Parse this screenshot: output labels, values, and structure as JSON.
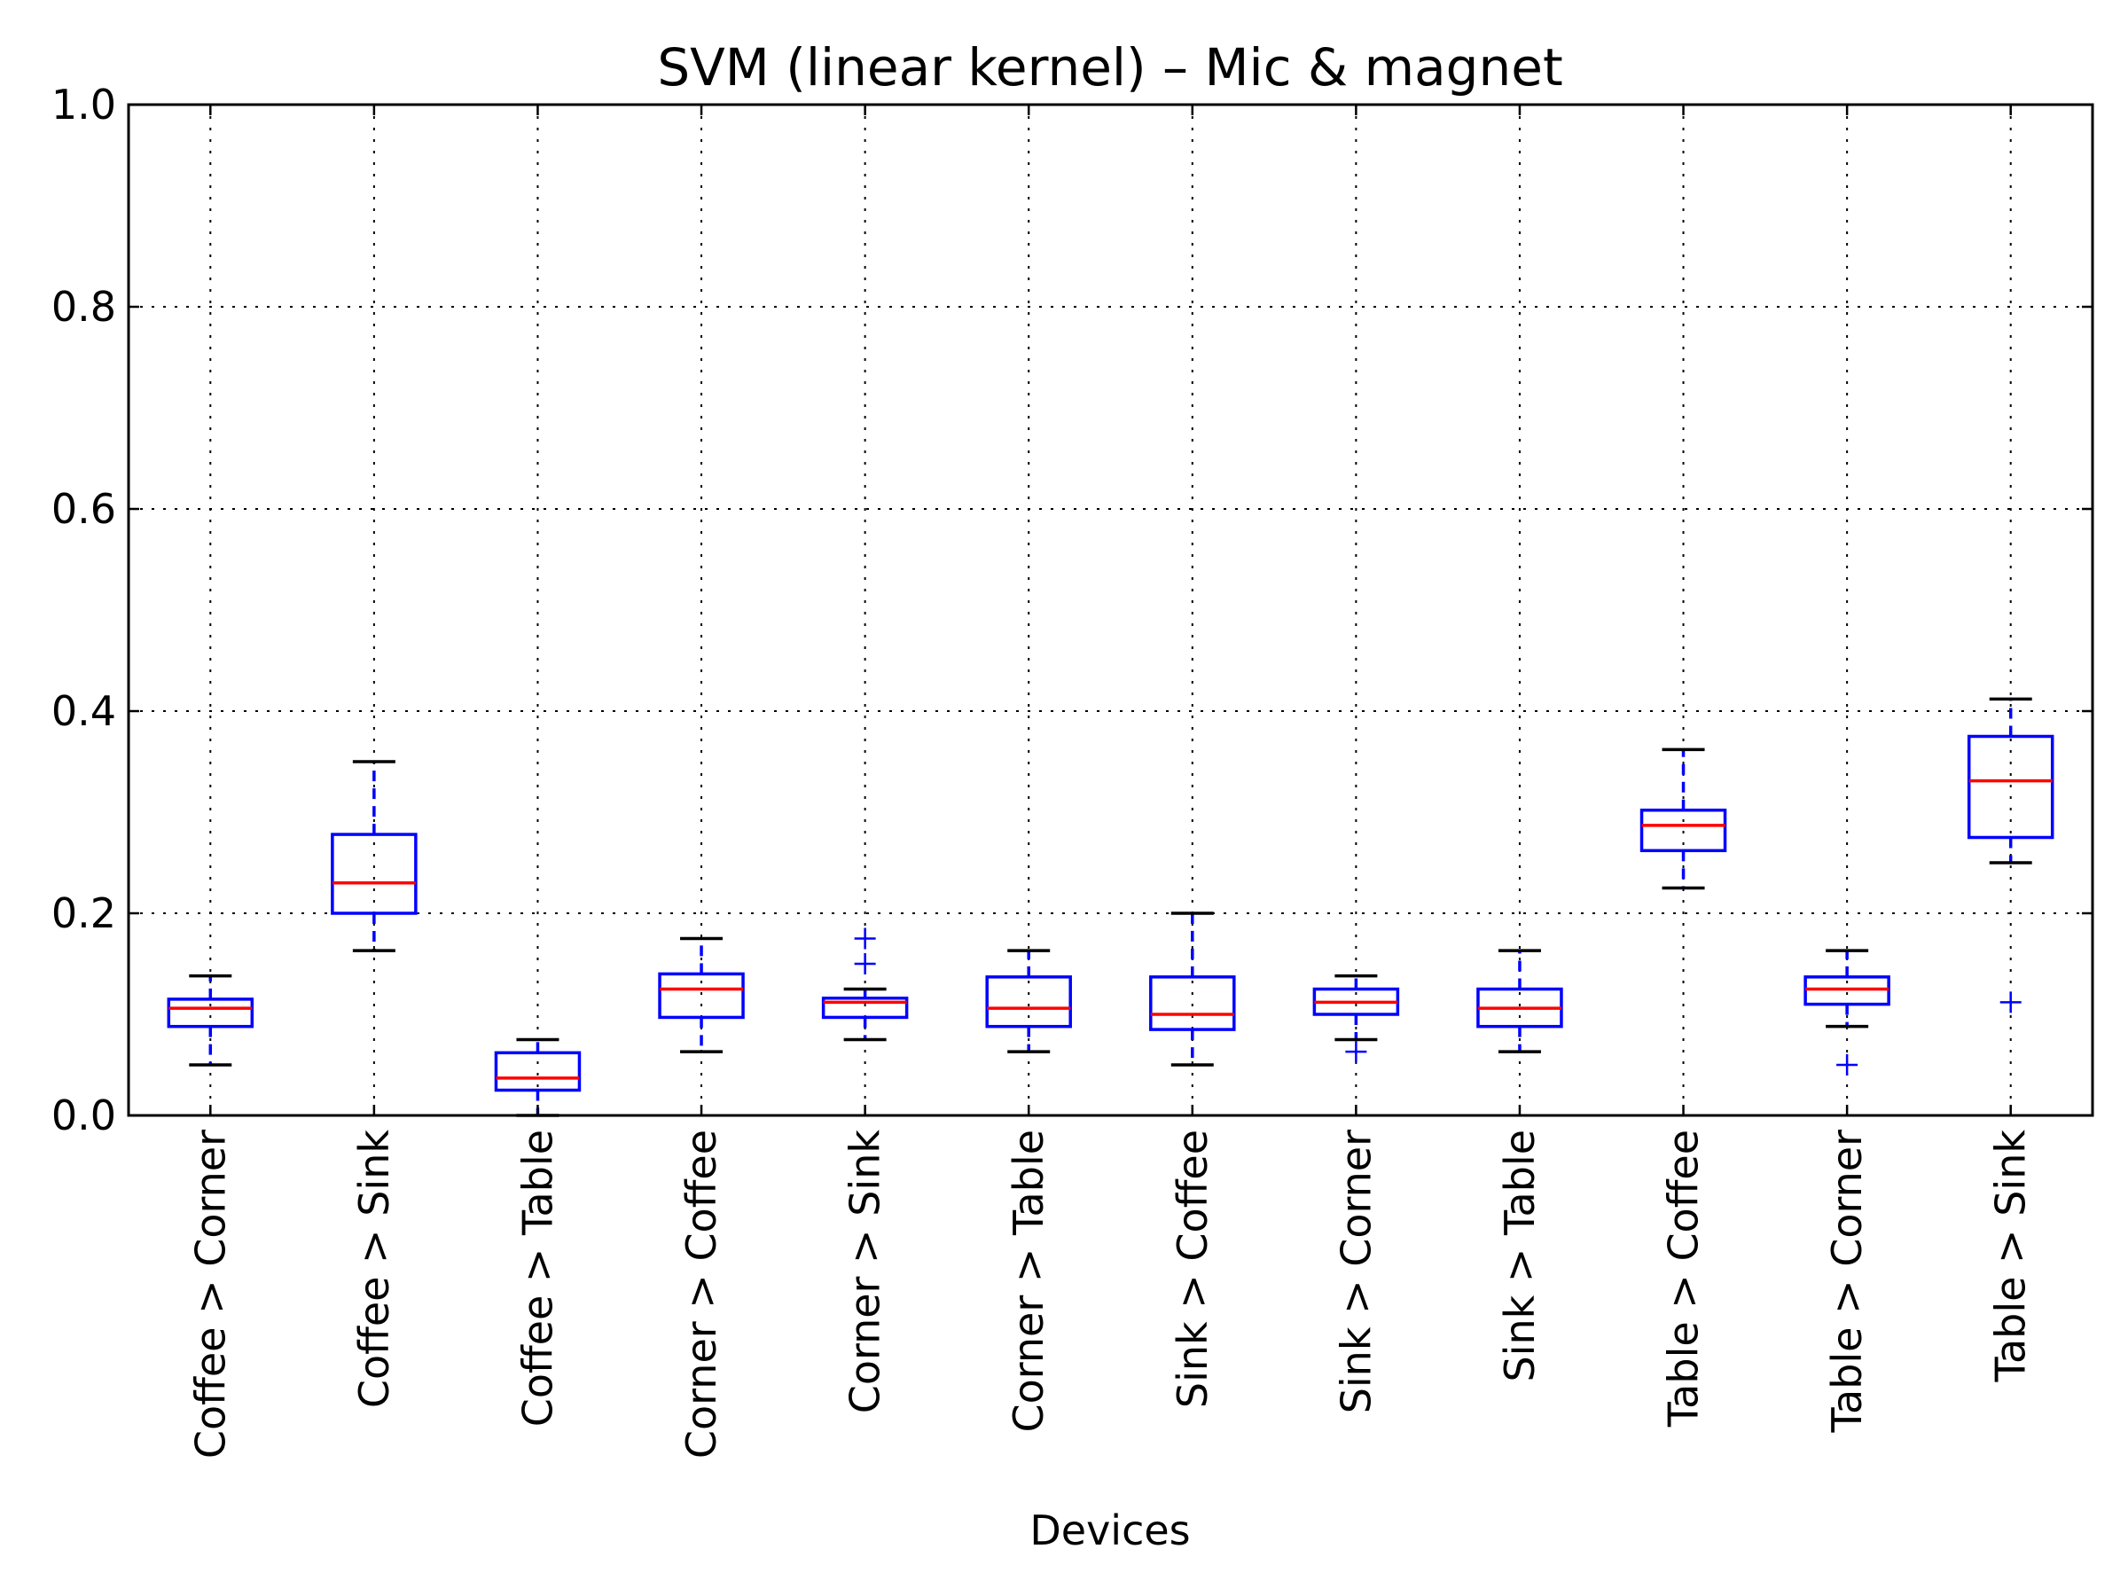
{
  "chart_data": {
    "type": "box",
    "title": "SVM (linear kernel) – Mic & magnet",
    "xlabel": "Devices",
    "ylabel": "",
    "ylim": [
      0.0,
      1.0
    ],
    "yticks": [
      "0.0",
      "0.2",
      "0.4",
      "0.6",
      "0.8",
      "1.0"
    ],
    "grid": true,
    "colors": {
      "box": "#0000ff",
      "median": "#ff0000",
      "cap": "#000000",
      "flier": "#0000ff"
    },
    "categories": [
      "Coffee > Corner",
      "Coffee > Sink",
      "Coffee > Table",
      "Corner > Coffee",
      "Corner > Sink",
      "Corner > Table",
      "Sink > Coffee",
      "Sink > Corner",
      "Sink > Table",
      "Table > Coffee",
      "Table > Corner",
      "Table > Sink"
    ],
    "boxes": [
      {
        "whislo": 0.05,
        "q1": 0.088,
        "med": 0.106,
        "q3": 0.115,
        "whishi": 0.138,
        "fliers": []
      },
      {
        "whislo": 0.163,
        "q1": 0.2,
        "med": 0.23,
        "q3": 0.278,
        "whishi": 0.35,
        "fliers": []
      },
      {
        "whislo": 0.0,
        "q1": 0.025,
        "med": 0.037,
        "q3": 0.062,
        "whishi": 0.075,
        "fliers": []
      },
      {
        "whislo": 0.063,
        "q1": 0.097,
        "med": 0.125,
        "q3": 0.14,
        "whishi": 0.175,
        "fliers": []
      },
      {
        "whislo": 0.075,
        "q1": 0.097,
        "med": 0.112,
        "q3": 0.116,
        "whishi": 0.125,
        "fliers": [
          0.15,
          0.175
        ]
      },
      {
        "whislo": 0.063,
        "q1": 0.088,
        "med": 0.106,
        "q3": 0.137,
        "whishi": 0.163,
        "fliers": []
      },
      {
        "whislo": 0.05,
        "q1": 0.085,
        "med": 0.1,
        "q3": 0.137,
        "whishi": 0.2,
        "fliers": []
      },
      {
        "whislo": 0.075,
        "q1": 0.1,
        "med": 0.112,
        "q3": 0.125,
        "whishi": 0.138,
        "fliers": [
          0.063
        ]
      },
      {
        "whislo": 0.063,
        "q1": 0.088,
        "med": 0.106,
        "q3": 0.125,
        "whishi": 0.163,
        "fliers": []
      },
      {
        "whislo": 0.225,
        "q1": 0.262,
        "med": 0.287,
        "q3": 0.302,
        "whishi": 0.362,
        "fliers": []
      },
      {
        "whislo": 0.088,
        "q1": 0.11,
        "med": 0.125,
        "q3": 0.137,
        "whishi": 0.163,
        "fliers": [
          0.05
        ]
      },
      {
        "whislo": 0.25,
        "q1": 0.275,
        "med": 0.331,
        "q3": 0.375,
        "whishi": 0.412,
        "fliers": [
          0.112
        ]
      }
    ]
  }
}
